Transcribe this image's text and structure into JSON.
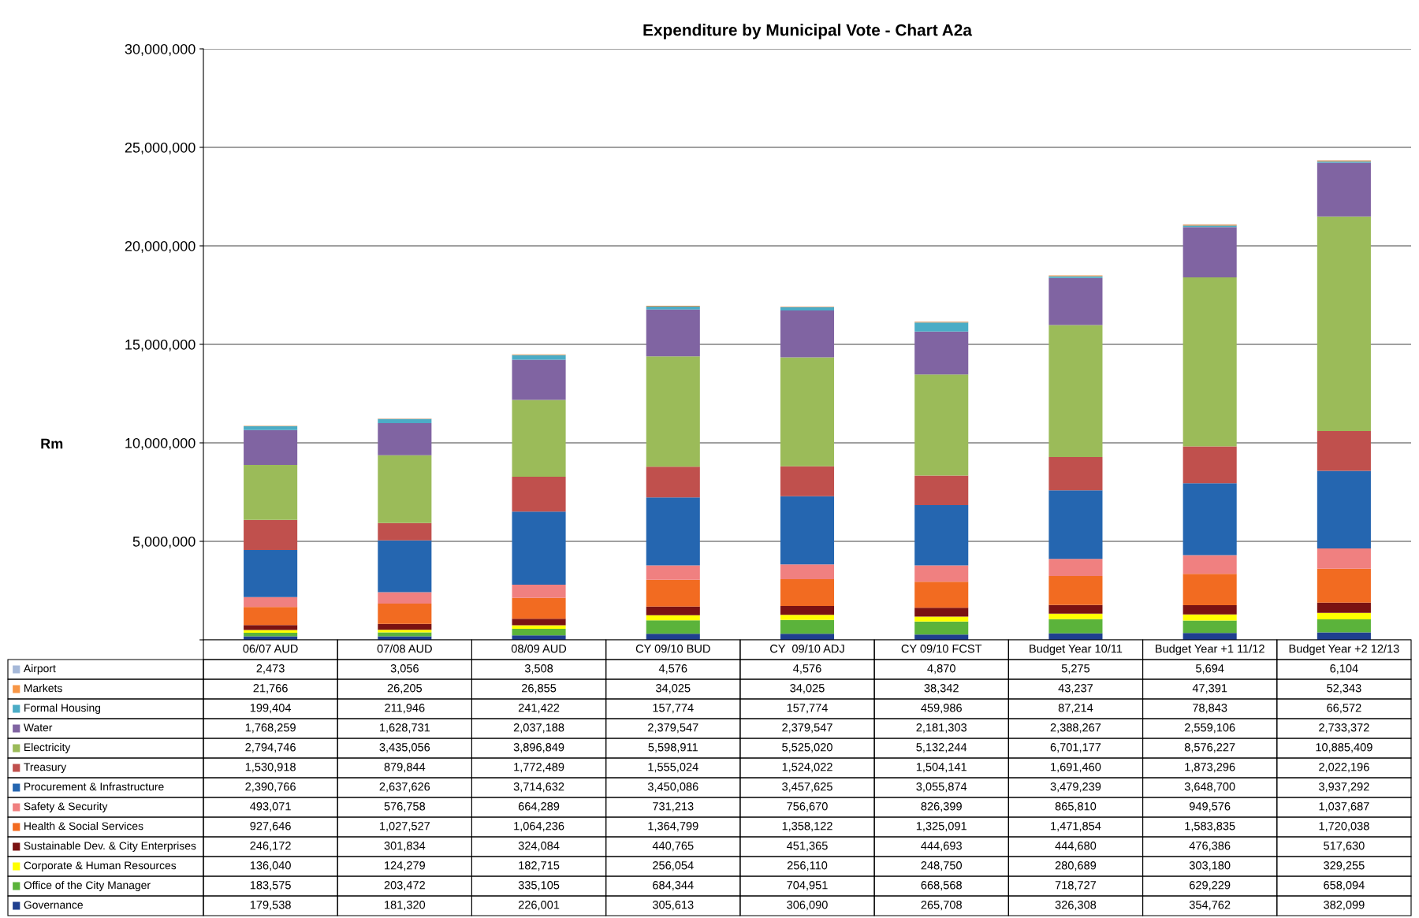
{
  "chart_data": {
    "type": "bar",
    "stacked": true,
    "title": "Expenditure by Municipal Vote - Chart A2a",
    "ylabel": "Rm",
    "categories": [
      "06/07 AUD",
      "07/08 AUD",
      "08/09 AUD",
      "CY 09/10 BUD",
      "CY  09/10 ADJ",
      "CY 09/10 FCST",
      "Budget Year 10/11",
      "Budget Year +1 11/12",
      "Budget Year +2 12/13"
    ],
    "series": [
      {
        "name": "Governance",
        "color": "#1f3f8f",
        "values": [
          179538,
          181320,
          226001,
          305613,
          306090,
          265708,
          326308,
          354762,
          382099
        ],
        "value_labels": [
          "179,538",
          "181,320",
          "226,001",
          "305,613",
          "306,090",
          "265,708",
          "326,308",
          "354,762",
          "382,099"
        ]
      },
      {
        "name": "Office of the City Manager",
        "color": "#5bb33b",
        "values": [
          183575,
          203472,
          335105,
          684344,
          704951,
          668568,
          718727,
          629229,
          658094
        ],
        "value_labels": [
          "183,575",
          "203,472",
          "335,105",
          "684,344",
          "704,951",
          "668,568",
          "718,727",
          "629,229",
          "658,094"
        ]
      },
      {
        "name": "Corporate & Human Resources",
        "color": "#ffff00",
        "values": [
          136040,
          124279,
          182715,
          256054,
          256110,
          248750,
          280689,
          303180,
          329255
        ],
        "value_labels": [
          "136,040",
          "124,279",
          "182,715",
          "256,054",
          "256,110",
          "248,750",
          "280,689",
          "303,180",
          "329,255"
        ]
      },
      {
        "name": "Sustainable Dev. & City Enterprises",
        "color": "#7a1212",
        "values": [
          246172,
          301834,
          324084,
          440765,
          451365,
          444693,
          444680,
          476386,
          517630
        ],
        "value_labels": [
          "246,172",
          "301,834",
          "324,084",
          "440,765",
          "451,365",
          "444,693",
          "444,680",
          "476,386",
          "517,630"
        ]
      },
      {
        "name": "Health & Social Services",
        "color": "#f26b21",
        "values": [
          927646,
          1027527,
          1064236,
          1364799,
          1358122,
          1325091,
          1471854,
          1583835,
          1720038
        ],
        "value_labels": [
          "927,646",
          "1,027,527",
          "1,064,236",
          "1,364,799",
          "1,358,122",
          "1,325,091",
          "1,471,854",
          "1,583,835",
          "1,720,038"
        ]
      },
      {
        "name": "Safety & Security",
        "color": "#f08080",
        "values": [
          493071,
          576758,
          664289,
          731213,
          756670,
          826399,
          865810,
          949576,
          1037687
        ],
        "value_labels": [
          "493,071",
          "576,758",
          "664,289",
          "731,213",
          "756,670",
          "826,399",
          "865,810",
          "949,576",
          "1,037,687"
        ]
      },
      {
        "name": "Procurement & Infrastructure",
        "color": "#2566b0",
        "values": [
          2390766,
          2637626,
          3714632,
          3450086,
          3457625,
          3055874,
          3479239,
          3648700,
          3937292
        ],
        "value_labels": [
          "2,390,766",
          "2,637,626",
          "3,714,632",
          "3,450,086",
          "3,457,625",
          "3,055,874",
          "3,479,239",
          "3,648,700",
          "3,937,292"
        ]
      },
      {
        "name": "Treasury",
        "color": "#c0504d",
        "values": [
          1530918,
          879844,
          1772489,
          1555024,
          1524022,
          1504141,
          1691460,
          1873296,
          2022196
        ],
        "value_labels": [
          "1,530,918",
          "879,844",
          "1,772,489",
          "1,555,024",
          "1,524,022",
          "1,504,141",
          "1,691,460",
          "1,873,296",
          "2,022,196"
        ]
      },
      {
        "name": "Electricity",
        "color": "#9bbb59",
        "values": [
          2794746,
          3435056,
          3896849,
          5598911,
          5525020,
          5132244,
          6701177,
          8576227,
          10885409
        ],
        "value_labels": [
          "2,794,746",
          "3,435,056",
          "3,896,849",
          "5,598,911",
          "5,525,020",
          "5,132,244",
          "6,701,177",
          "8,576,227",
          "10,885,409"
        ]
      },
      {
        "name": "Water",
        "color": "#8064a2",
        "values": [
          1768259,
          1628731,
          2037188,
          2379547,
          2379547,
          2181303,
          2388267,
          2559106,
          2733372
        ],
        "value_labels": [
          "1,768,259",
          "1,628,731",
          "2,037,188",
          "2,379,547",
          "2,379,547",
          "2,181,303",
          "2,388,267",
          "2,559,106",
          "2,733,372"
        ]
      },
      {
        "name": "Formal Housing",
        "color": "#4bacc6",
        "values": [
          199404,
          211946,
          241422,
          157774,
          157774,
          459986,
          87214,
          78843,
          66572
        ],
        "value_labels": [
          "199,404",
          "211,946",
          "241,422",
          "157,774",
          "157,774",
          "459,986",
          "87,214",
          "78,843",
          "66,572"
        ]
      },
      {
        "name": "Markets",
        "color": "#f79646",
        "values": [
          21766,
          26205,
          26855,
          34025,
          34025,
          38342,
          43237,
          47391,
          52343
        ],
        "value_labels": [
          "21,766",
          "26,205",
          "26,855",
          "34,025",
          "34,025",
          "38,342",
          "43,237",
          "47,391",
          "52,343"
        ]
      },
      {
        "name": "Airport",
        "color": "#a5b8d8",
        "values": [
          2473,
          3056,
          3508,
          4576,
          4576,
          4870,
          5275,
          5694,
          6104
        ],
        "value_labels": [
          "2,473",
          "3,056",
          "3,508",
          "4,576",
          "4,576",
          "4,870",
          "5,275",
          "5,694",
          "6,104"
        ]
      }
    ],
    "ylim": [
      0,
      30000000
    ],
    "yticks": [
      {
        "value": 0,
        "label": null
      },
      {
        "value": 5000000,
        "label": "5,000,000"
      },
      {
        "value": 10000000,
        "label": "10,000,000"
      },
      {
        "value": 15000000,
        "label": "15,000,000"
      },
      {
        "value": 20000000,
        "label": "20,000,000"
      },
      {
        "value": 25000000,
        "label": "25,000,000"
      },
      {
        "value": 30000000,
        "label": "30,000,000"
      }
    ],
    "grid": "y",
    "legend": "bottom left"
  }
}
